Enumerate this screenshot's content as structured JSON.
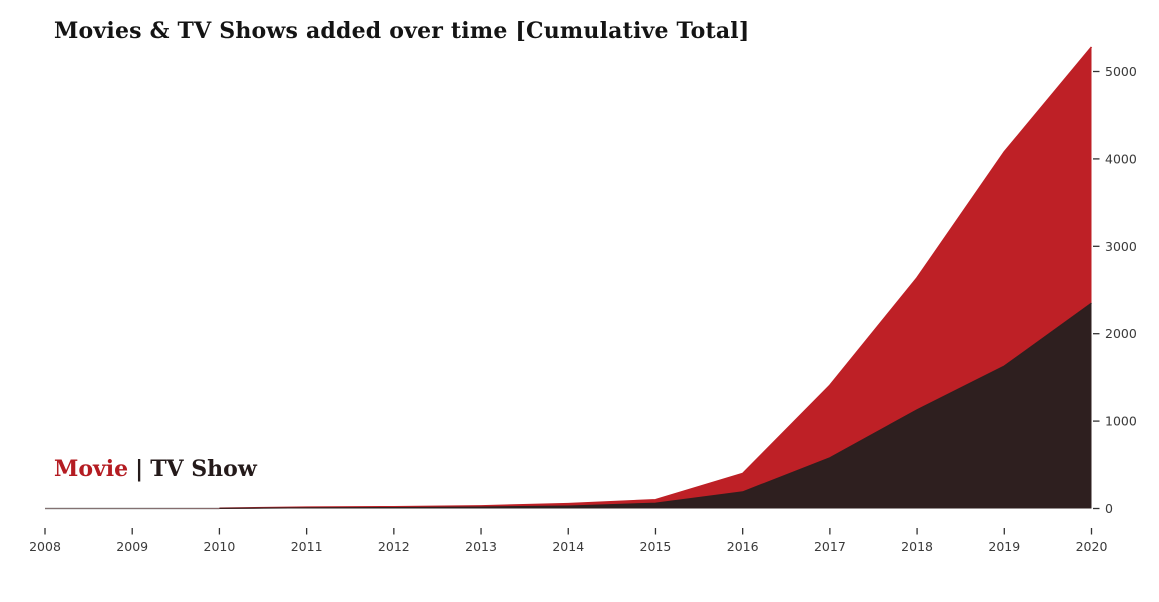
{
  "page": {
    "background": "#ffffff"
  },
  "title": {
    "text": "Movies & TV Shows added over time [Cumulative Total]",
    "color": "#141414"
  },
  "legend": {
    "movie_label": "Movie",
    "separator": "|",
    "tv_label": "TV Show",
    "movie_color": "#B41C22",
    "tv_color": "#241A1A"
  },
  "chart_data": {
    "type": "area",
    "mode": "overlay",
    "title": "Movies & TV Shows added over time [Cumulative Total]",
    "x": [
      2008,
      2009,
      2010,
      2011,
      2012,
      2013,
      2014,
      2015,
      2016,
      2017,
      2018,
      2019,
      2020
    ],
    "xticklabels": [
      "2008",
      "2009",
      "2010",
      "2011",
      "2012",
      "2013",
      "2014",
      "2015",
      "2016",
      "2017",
      "2018",
      "2019",
      "2020"
    ],
    "series": [
      {
        "name": "Movie",
        "color": "#BE2026",
        "values": [
          1,
          2,
          3,
          15,
          20,
          30,
          55,
          100,
          400,
          1410,
          2640,
          4080,
          5280
        ]
      },
      {
        "name": "TV Show",
        "color": "#2E1F1F",
        "values": [
          1,
          1,
          2,
          8,
          10,
          16,
          28,
          60,
          190,
          580,
          1130,
          1630,
          2350
        ]
      }
    ],
    "xlabel": "",
    "ylabel": "",
    "ylim": [
      0,
      5400
    ],
    "yticks": [
      0,
      1000,
      2000,
      3000,
      4000,
      5000
    ],
    "yaxis_side": "right",
    "grid": false,
    "legend_position": "lower-left",
    "tick_label_color": "#3A3A3A",
    "tick_mark_color": "#333333",
    "baseline_color": "#8A8A8A"
  }
}
